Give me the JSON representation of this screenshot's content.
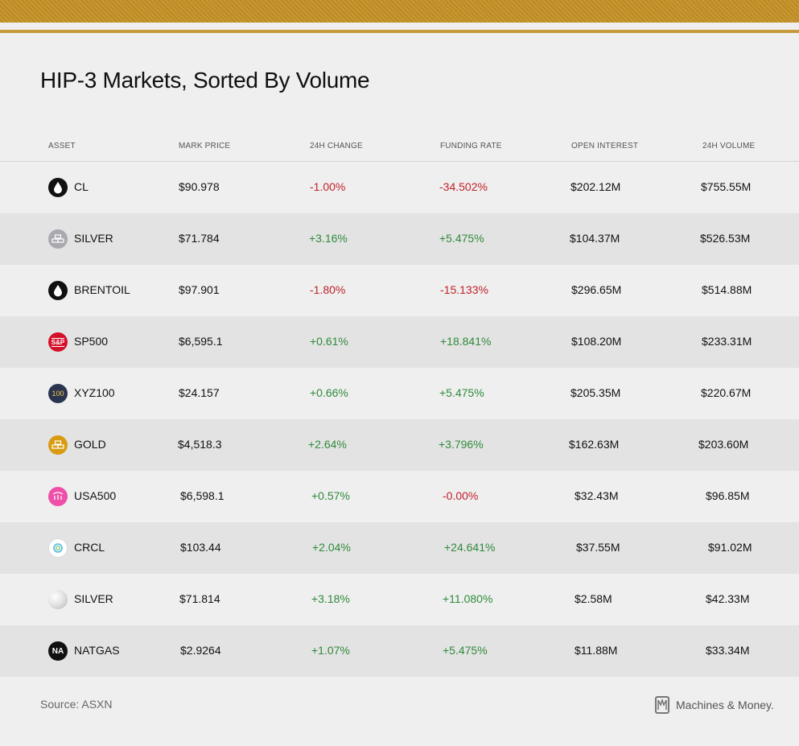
{
  "title": "HIP-3 Markets, Sorted By Volume",
  "columns": {
    "asset": "ASSET",
    "mark_price": "MARK PRICE",
    "change_24h": "24H CHANGE",
    "funding_rate": "FUNDING RATE",
    "open_interest": "OPEN INTEREST",
    "volume_24h": "24H VOLUME"
  },
  "rows": [
    {
      "icon": "oil-drop-icon",
      "asset": "CL",
      "mark_price": "$90.978",
      "change": "-1.00%",
      "change_dir": "neg",
      "funding": "-34.502%",
      "funding_dir": "neg",
      "oi": "$202.12M",
      "volume": "$755.55M"
    },
    {
      "icon": "silver-bars-icon",
      "asset": "SILVER",
      "mark_price": "$71.784",
      "change": "+3.16%",
      "change_dir": "pos",
      "funding": "+5.475%",
      "funding_dir": "pos",
      "oi": "$104.37M",
      "volume": "$526.53M"
    },
    {
      "icon": "oil-drop-icon",
      "asset": "BRENTOIL",
      "mark_price": "$97.901",
      "change": "-1.80%",
      "change_dir": "neg",
      "funding": "-15.133%",
      "funding_dir": "neg",
      "oi": "$296.65M",
      "volume": "$514.88M"
    },
    {
      "icon": "sp500-logo-icon",
      "asset": "SP500",
      "mark_price": "$6,595.1",
      "change": "+0.61%",
      "change_dir": "pos",
      "funding": "+18.841%",
      "funding_dir": "pos",
      "oi": "$108.20M",
      "volume": "$233.31M"
    },
    {
      "icon": "xyz100-logo-icon",
      "asset": "XYZ100",
      "mark_price": "$24.157",
      "change": "+0.66%",
      "change_dir": "pos",
      "funding": "+5.475%",
      "funding_dir": "pos",
      "oi": "$205.35M",
      "volume": "$220.67M"
    },
    {
      "icon": "gold-bars-icon",
      "asset": "GOLD",
      "mark_price": "$4,518.3",
      "change": "+2.64%",
      "change_dir": "pos",
      "funding": "+3.796%",
      "funding_dir": "pos",
      "oi": "$162.63M",
      "volume": "$203.60M"
    },
    {
      "icon": "usa500-logo-icon",
      "asset": "USA500",
      "mark_price": "$6,598.1",
      "change": "+0.57%",
      "change_dir": "pos",
      "funding": "-0.00%",
      "funding_dir": "neg",
      "oi": "$32.43M",
      "volume": "$96.85M"
    },
    {
      "icon": "crcl-logo-icon",
      "asset": "CRCL",
      "mark_price": "$103.44",
      "change": "+2.04%",
      "change_dir": "pos",
      "funding": "+24.641%",
      "funding_dir": "pos",
      "oi": "$37.55M",
      "volume": "$91.02M"
    },
    {
      "icon": "silver-coin-icon",
      "asset": "SILVER",
      "mark_price": "$71.814",
      "change": "+3.18%",
      "change_dir": "pos",
      "funding": "+11.080%",
      "funding_dir": "pos",
      "oi": "$2.58M",
      "volume": "$42.33M"
    },
    {
      "icon": "natgas-logo-icon",
      "asset": "NATGAS",
      "mark_price": "$2.9264",
      "change": "+1.07%",
      "change_dir": "pos",
      "funding": "+5.475%",
      "funding_dir": "pos",
      "oi": "$11.88M",
      "volume": "$33.34M"
    }
  ],
  "icon_text": {
    "sp500": "S&P",
    "xyz100": "100",
    "natgas": "NA"
  },
  "source": "Source: ASXN",
  "brand": "Machines & Money."
}
